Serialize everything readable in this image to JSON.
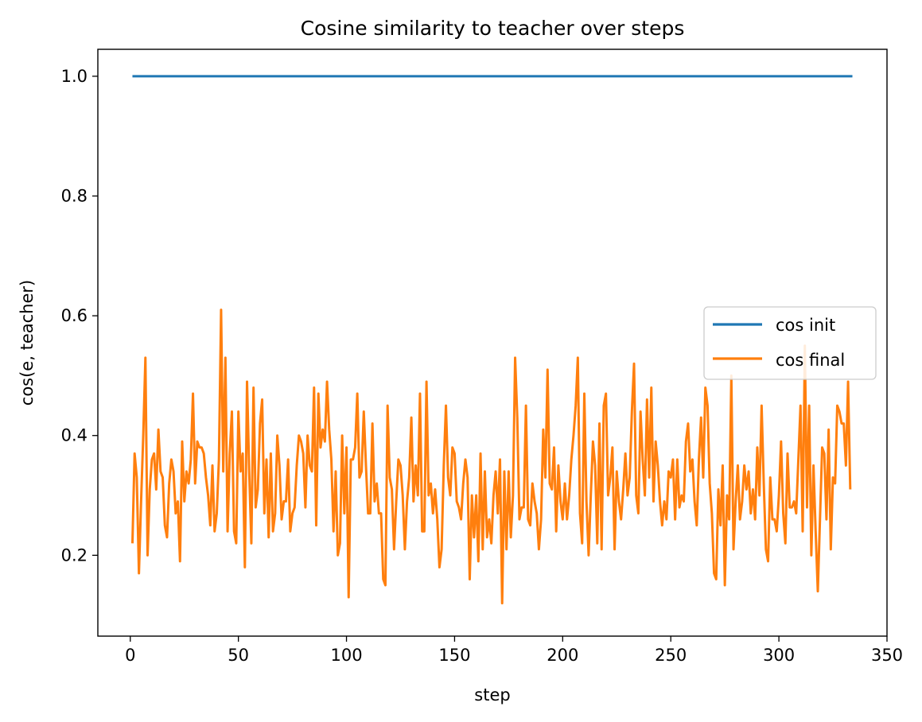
{
  "chart_data": {
    "type": "line",
    "title": "Cosine similarity to teacher over steps",
    "xlabel": "step",
    "ylabel": "cos(e, teacher)",
    "xlim": [
      -15,
      350
    ],
    "ylim": [
      0.065,
      1.045
    ],
    "xticks": [
      0,
      50,
      100,
      150,
      200,
      250,
      300,
      350
    ],
    "yticks": [
      0.2,
      0.4,
      0.6,
      0.8,
      1.0
    ],
    "ytick_labels": [
      "0.2",
      "0.4",
      "0.6",
      "0.8",
      "1.0"
    ],
    "grid": false,
    "legend_position": "center-right",
    "series": [
      {
        "name": "cos init",
        "color": "#1f77b4",
        "x_start": 1,
        "x_step": 1,
        "values_constant": 1.0,
        "count": 334
      },
      {
        "name": "cos final",
        "color": "#ff7f0e",
        "x_start": 1,
        "x_step": 1,
        "values": [
          0.22,
          0.37,
          0.33,
          0.17,
          0.29,
          0.4,
          0.53,
          0.2,
          0.31,
          0.36,
          0.37,
          0.31,
          0.41,
          0.34,
          0.33,
          0.25,
          0.23,
          0.32,
          0.36,
          0.34,
          0.27,
          0.29,
          0.19,
          0.39,
          0.29,
          0.34,
          0.32,
          0.36,
          0.47,
          0.32,
          0.39,
          0.38,
          0.38,
          0.37,
          0.33,
          0.3,
          0.25,
          0.35,
          0.24,
          0.27,
          0.36,
          0.61,
          0.34,
          0.53,
          0.24,
          0.37,
          0.44,
          0.24,
          0.22,
          0.44,
          0.34,
          0.37,
          0.18,
          0.49,
          0.34,
          0.22,
          0.48,
          0.28,
          0.31,
          0.42,
          0.46,
          0.27,
          0.36,
          0.23,
          0.37,
          0.24,
          0.27,
          0.4,
          0.35,
          0.26,
          0.29,
          0.29,
          0.36,
          0.24,
          0.27,
          0.28,
          0.35,
          0.4,
          0.39,
          0.37,
          0.28,
          0.4,
          0.35,
          0.34,
          0.48,
          0.25,
          0.47,
          0.38,
          0.41,
          0.39,
          0.49,
          0.41,
          0.36,
          0.24,
          0.34,
          0.2,
          0.22,
          0.4,
          0.27,
          0.38,
          0.13,
          0.36,
          0.36,
          0.38,
          0.47,
          0.33,
          0.34,
          0.44,
          0.35,
          0.27,
          0.27,
          0.42,
          0.29,
          0.32,
          0.27,
          0.27,
          0.16,
          0.15,
          0.45,
          0.33,
          0.31,
          0.21,
          0.29,
          0.36,
          0.35,
          0.3,
          0.21,
          0.29,
          0.33,
          0.43,
          0.29,
          0.35,
          0.3,
          0.47,
          0.24,
          0.24,
          0.49,
          0.3,
          0.32,
          0.27,
          0.31,
          0.26,
          0.18,
          0.21,
          0.35,
          0.45,
          0.33,
          0.3,
          0.38,
          0.37,
          0.29,
          0.28,
          0.26,
          0.32,
          0.36,
          0.33,
          0.16,
          0.3,
          0.23,
          0.3,
          0.19,
          0.37,
          0.21,
          0.34,
          0.23,
          0.26,
          0.22,
          0.3,
          0.34,
          0.27,
          0.36,
          0.12,
          0.34,
          0.21,
          0.34,
          0.23,
          0.3,
          0.53,
          0.43,
          0.26,
          0.28,
          0.28,
          0.45,
          0.26,
          0.25,
          0.32,
          0.29,
          0.27,
          0.21,
          0.26,
          0.41,
          0.33,
          0.51,
          0.32,
          0.31,
          0.38,
          0.24,
          0.35,
          0.29,
          0.26,
          0.32,
          0.26,
          0.3,
          0.36,
          0.4,
          0.45,
          0.53,
          0.27,
          0.22,
          0.47,
          0.29,
          0.2,
          0.3,
          0.39,
          0.35,
          0.22,
          0.42,
          0.21,
          0.45,
          0.47,
          0.3,
          0.33,
          0.38,
          0.21,
          0.34,
          0.29,
          0.26,
          0.31,
          0.37,
          0.3,
          0.33,
          0.44,
          0.52,
          0.3,
          0.27,
          0.44,
          0.36,
          0.3,
          0.46,
          0.33,
          0.48,
          0.29,
          0.39,
          0.35,
          0.29,
          0.25,
          0.29,
          0.26,
          0.34,
          0.33,
          0.36,
          0.26,
          0.36,
          0.28,
          0.3,
          0.29,
          0.39,
          0.42,
          0.34,
          0.36,
          0.29,
          0.25,
          0.36,
          0.43,
          0.33,
          0.48,
          0.45,
          0.32,
          0.27,
          0.17,
          0.16,
          0.31,
          0.25,
          0.35,
          0.15,
          0.3,
          0.26,
          0.5,
          0.21,
          0.29,
          0.35,
          0.26,
          0.29,
          0.35,
          0.31,
          0.34,
          0.27,
          0.31,
          0.26,
          0.38,
          0.3,
          0.45,
          0.32,
          0.21,
          0.19,
          0.33,
          0.26,
          0.26,
          0.24,
          0.3,
          0.39,
          0.27,
          0.22,
          0.37,
          0.28,
          0.28,
          0.29,
          0.27,
          0.36,
          0.45,
          0.24,
          0.55,
          0.28,
          0.45,
          0.2,
          0.35,
          0.24,
          0.14,
          0.26,
          0.38,
          0.37,
          0.26,
          0.41,
          0.21,
          0.33,
          0.32,
          0.45,
          0.44,
          0.42,
          0.42,
          0.35,
          0.49,
          0.31
        ]
      }
    ]
  }
}
